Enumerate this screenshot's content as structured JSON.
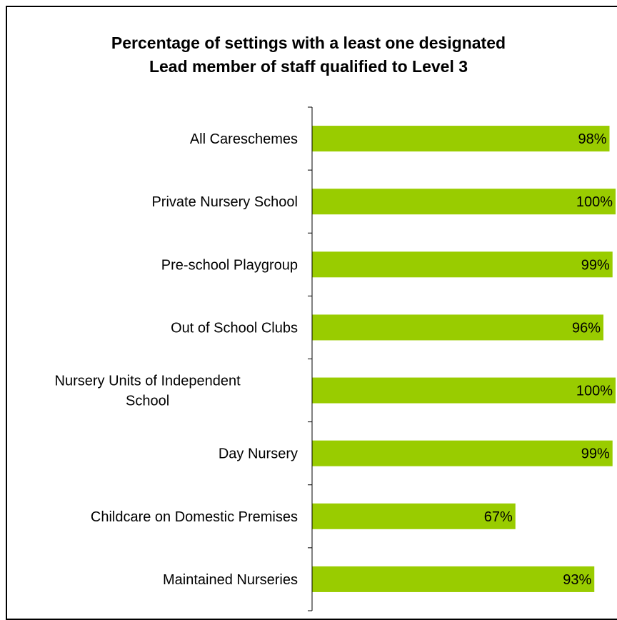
{
  "chart_data": {
    "type": "bar",
    "orientation": "horizontal",
    "title_lines": [
      "Percentage of settings with a least one designated",
      "Lead member of staff qualified to Level 3"
    ],
    "categories": [
      [
        "All Careschemes"
      ],
      [
        "Private Nursery School"
      ],
      [
        "Pre-school Playgroup"
      ],
      [
        "Out of School Clubs"
      ],
      [
        "Nursery Units of Independent",
        "School"
      ],
      [
        "Day Nursery"
      ],
      [
        "Childcare on Domestic Premises"
      ],
      [
        "Maintained Nurseries"
      ]
    ],
    "values": [
      98,
      100,
      99,
      96,
      100,
      99,
      67,
      93
    ],
    "value_labels": [
      "98%",
      "100%",
      "99%",
      "96%",
      "100%",
      "99%",
      "67%",
      "93%"
    ],
    "xlim": [
      0,
      100
    ],
    "bar_color": "#99cc00",
    "grid": false,
    "legend": "none"
  }
}
